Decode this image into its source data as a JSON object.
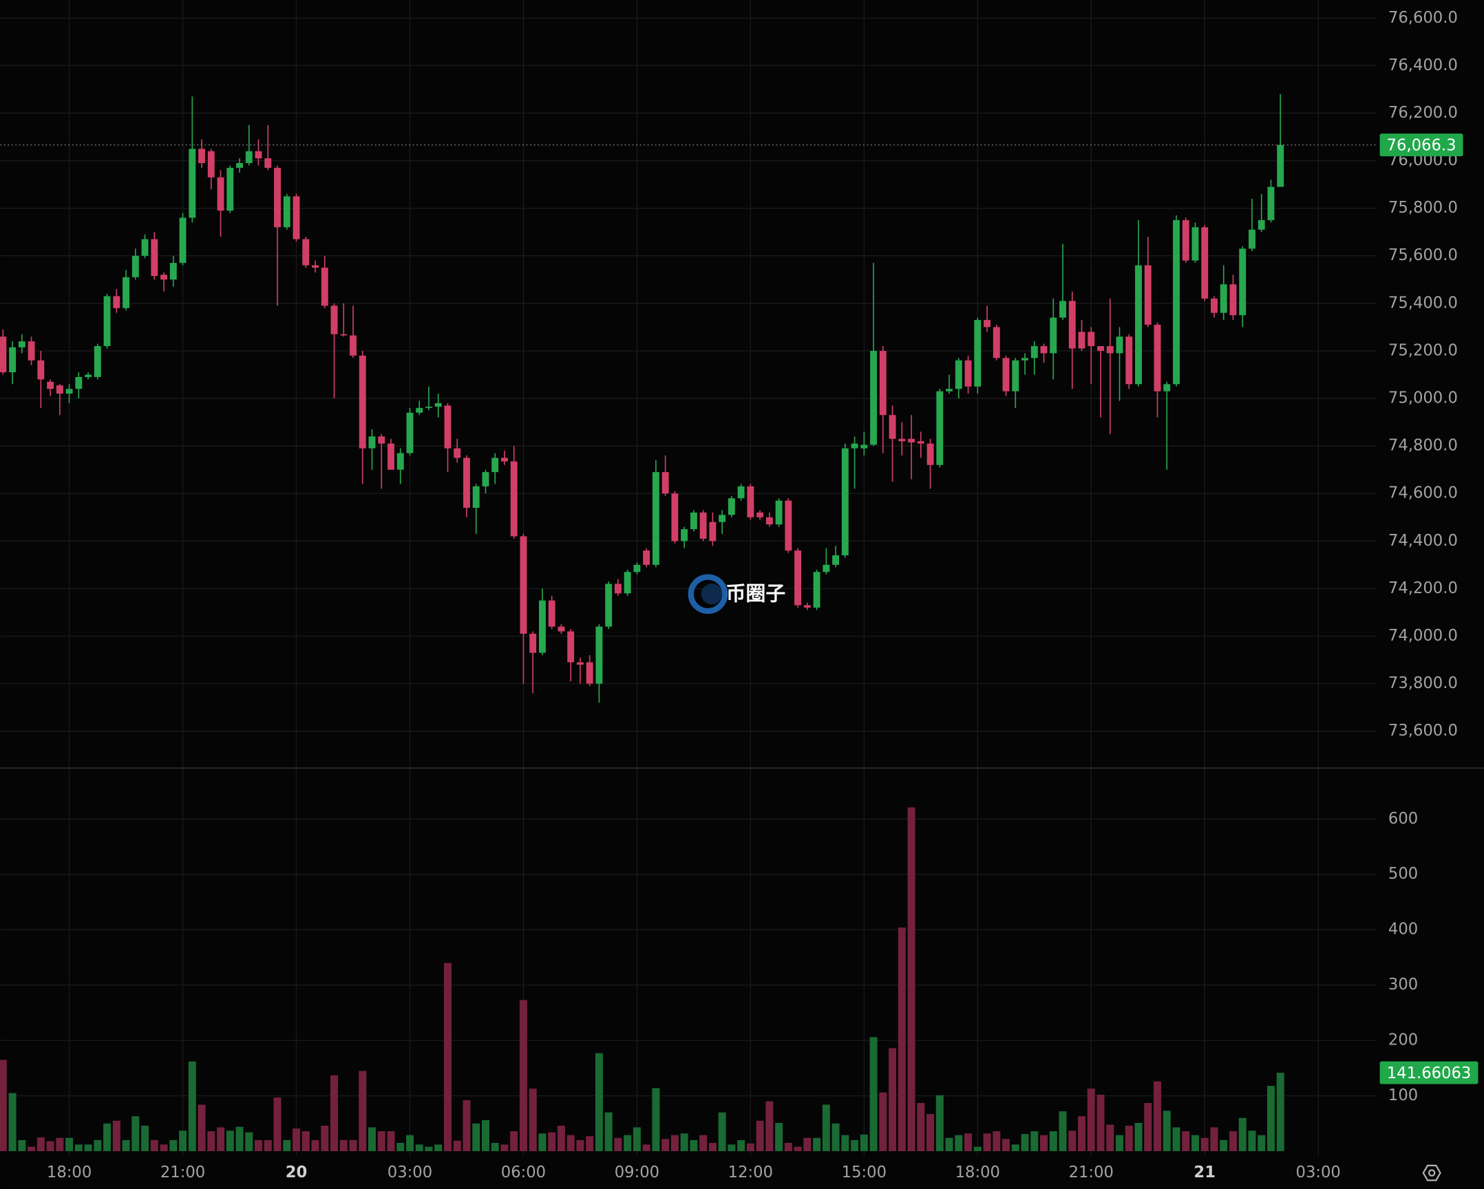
{
  "chart_data": {
    "type": "candlestick",
    "open": [
      75260,
      75110,
      75215,
      75240,
      75160,
      75070,
      75055,
      75020,
      75040,
      75090,
      75090,
      75220,
      75430,
      75380,
      75510,
      75600,
      75670,
      75520,
      75500,
      75570,
      75760,
      76050,
      76040,
      75930,
      75790,
      75970,
      75990,
      76040,
      76010,
      75970,
      75720,
      75850,
      75670,
      75560,
      75550,
      75390,
      75270,
      75265,
      75180,
      74790,
      74840,
      74810,
      74700,
      74770,
      74940,
      74960,
      74965,
      74970,
      74790,
      74750,
      74540,
      74630,
      74690,
      74750,
      74735,
      74420,
      74010,
      73930,
      74150,
      74040,
      74020,
      73890,
      73890,
      73800,
      74040,
      74220,
      74180,
      74270,
      74360,
      74300,
      74690,
      74600,
      74400,
      74450,
      74520,
      74480,
      74480,
      74510,
      74580,
      74630,
      74520,
      74500,
      74470,
      74570,
      74360,
      74130,
      74120,
      74270,
      74300,
      74340,
      74790,
      74790,
      74805,
      75200,
      74930,
      74830,
      74830,
      74820,
      74810,
      74720,
      75030,
      75040,
      75160,
      75050,
      75330,
      75300,
      75170,
      75030,
      75160,
      75170,
      75220,
      75190,
      75340,
      75410,
      75280,
      75280,
      75220,
      75220,
      75190,
      75260,
      75060,
      75560,
      75310,
      75030,
      75060,
      75750,
      75580,
      75720,
      75420,
      75360,
      75480,
      75350,
      75630,
      75710,
      75750,
      75890
    ],
    "high": [
      75290,
      75240,
      75270,
      75260,
      75200,
      75080,
      75060,
      75060,
      75110,
      75110,
      75230,
      75440,
      75460,
      75540,
      75630,
      75690,
      75700,
      75530,
      75600,
      75780,
      76270,
      76090,
      76050,
      75960,
      75980,
      76010,
      76150,
      76090,
      76150,
      75980,
      75860,
      75860,
      75680,
      75580,
      75600,
      75400,
      75400,
      75390,
      75200,
      74870,
      74850,
      74830,
      74790,
      74960,
      74990,
      75050,
      75020,
      74980,
      74830,
      74760,
      74640,
      74700,
      74770,
      74780,
      74800,
      74430,
      74020,
      74200,
      74170,
      74050,
      74030,
      73910,
      73920,
      74050,
      74230,
      74240,
      74280,
      74310,
      74370,
      74740,
      74760,
      74610,
      74460,
      74530,
      74530,
      74520,
      74530,
      74590,
      74640,
      74640,
      74530,
      74520,
      74580,
      74580,
      74370,
      74140,
      74280,
      74370,
      74380,
      74810,
      74840,
      74860,
      75570,
      75220,
      74970,
      74900,
      74930,
      74860,
      74830,
      75040,
      75100,
      75170,
      75180,
      75340,
      75390,
      75310,
      75180,
      75170,
      75190,
      75240,
      75230,
      75420,
      75650,
      75450,
      75330,
      75300,
      75210,
      75420,
      75300,
      75270,
      75750,
      75680,
      75320,
      75070,
      75770,
      75760,
      75740,
      75730,
      75430,
      75560,
      75520,
      75640,
      75840,
      75860,
      75920,
      76280
    ],
    "low": [
      75100,
      75060,
      75190,
      75140,
      74960,
      75010,
      74930,
      74980,
      75000,
      75080,
      75080,
      75210,
      75360,
      75370,
      75500,
      75590,
      75500,
      75450,
      75470,
      75560,
      75740,
      75970,
      75880,
      75680,
      75780,
      75950,
      75980,
      75980,
      75960,
      75390,
      75710,
      75660,
      75550,
      75530,
      75380,
      75000,
      75260,
      75170,
      74640,
      74700,
      74620,
      74700,
      74640,
      74760,
      74930,
      74950,
      74920,
      74690,
      74730,
      74500,
      74430,
      74600,
      74640,
      74720,
      74410,
      73800,
      73760,
      73920,
      74030,
      74010,
      73810,
      73800,
      73790,
      73720,
      74030,
      74170,
      74170,
      74260,
      74290,
      74290,
      74590,
      74390,
      74370,
      74440,
      74400,
      74380,
      74430,
      74500,
      74570,
      74490,
      74490,
      74460,
      74460,
      74350,
      74120,
      74110,
      74110,
      74260,
      74290,
      74330,
      74620,
      74760,
      74800,
      74770,
      74650,
      74760,
      74660,
      74750,
      74620,
      74710,
      75020,
      75000,
      75020,
      75020,
      75280,
      75160,
      75010,
      74960,
      75100,
      75100,
      75150,
      75080,
      75330,
      75040,
      75200,
      75060,
      74920,
      74850,
      74990,
      75040,
      75050,
      75300,
      74920,
      74700,
      75050,
      75570,
      75570,
      75410,
      75340,
      75330,
      75330,
      75300,
      75620,
      75700,
      75740,
      75890
    ],
    "close": [
      75110,
      75215,
      75240,
      75160,
      75080,
      75040,
      75020,
      75040,
      75090,
      75100,
      75220,
      75430,
      75380,
      75510,
      75600,
      75670,
      75515,
      75500,
      75570,
      75760,
      76050,
      75990,
      75930,
      75790,
      75970,
      75990,
      76040,
      76010,
      75970,
      75720,
      75850,
      75670,
      75560,
      75550,
      75390,
      75270,
      75265,
      75180,
      74790,
      74840,
      74810,
      74700,
      74770,
      74940,
      74960,
      74965,
      74980,
      74790,
      74750,
      74540,
      74630,
      74690,
      74750,
      74735,
      74420,
      74010,
      73930,
      74150,
      74040,
      74020,
      73890,
      73880,
      73800,
      74040,
      74220,
      74180,
      74270,
      74300,
      74300,
      74690,
      74600,
      74400,
      74450,
      74520,
      74410,
      74400,
      74510,
      74580,
      74630,
      74500,
      74500,
      74470,
      74570,
      74360,
      74130,
      74120,
      74270,
      74300,
      74340,
      74790,
      74810,
      74805,
      75200,
      74930,
      74830,
      74820,
      74815,
      74810,
      74720,
      75030,
      75040,
      75160,
      75050,
      75330,
      75300,
      75170,
      75030,
      75160,
      75170,
      75220,
      75190,
      75340,
      75410,
      75210,
      75210,
      75220,
      75200,
      75190,
      75260,
      75060,
      75560,
      75310,
      75030,
      75060,
      75750,
      75580,
      75720,
      75420,
      75360,
      75480,
      75350,
      75630,
      75710,
      75750,
      75890,
      76066.3
    ],
    "volume": [
      165,
      105,
      20,
      8,
      25,
      18,
      24,
      24,
      12,
      12,
      20,
      50,
      55,
      20,
      63,
      46,
      20,
      12,
      20,
      37,
      162,
      84,
      36,
      43,
      37,
      44,
      34,
      20,
      20,
      97,
      20,
      41,
      36,
      20,
      46,
      137,
      20,
      20,
      145,
      43,
      36,
      36,
      15,
      29,
      12,
      8,
      12,
      340,
      19,
      92,
      50,
      56,
      15,
      12,
      36,
      273,
      113,
      32,
      34,
      46,
      29,
      20,
      27,
      177,
      70,
      24,
      29,
      43,
      12,
      114,
      22,
      29,
      32,
      20,
      29,
      15,
      70,
      12,
      20,
      14,
      55,
      90,
      51,
      15,
      8,
      24,
      24,
      84,
      50,
      29,
      20,
      30,
      206,
      106,
      186,
      404,
      621,
      87,
      67,
      101,
      24,
      29,
      32,
      8,
      32,
      36,
      22,
      12,
      31,
      36,
      29,
      36,
      72,
      37,
      63,
      113,
      102,
      48,
      29,
      46,
      51,
      87,
      126,
      73,
      43,
      36,
      29,
      24,
      43,
      20,
      36,
      60,
      37,
      29,
      118,
      141.66063
    ],
    "last_price_label": "76,066.3",
    "watermark": "币圈子",
    "ylim": [
      73445,
      76676
    ],
    "yticks": [
      {
        "value": 73600,
        "label": "73,600.0"
      },
      {
        "value": 73800,
        "label": "73,800.0"
      },
      {
        "value": 74000,
        "label": "74,000.0"
      },
      {
        "value": 74200,
        "label": "74,200.0"
      },
      {
        "value": 74400,
        "label": "74,400.0"
      },
      {
        "value": 74600,
        "label": "74,600.0"
      },
      {
        "value": 74800,
        "label": "74,800.0"
      },
      {
        "value": 75000,
        "label": "75,000.0"
      },
      {
        "value": 75200,
        "label": "75,200.0"
      },
      {
        "value": 75400,
        "label": "75,400.0"
      },
      {
        "value": 75600,
        "label": "75,600.0"
      },
      {
        "value": 75800,
        "label": "75,800.0"
      },
      {
        "value": 76000,
        "label": "76,000.0"
      },
      {
        "value": 76200,
        "label": "76,200.0"
      },
      {
        "value": 76400,
        "label": "76,400.0"
      },
      {
        "value": 76600,
        "label": "76,600.0"
      }
    ],
    "volume_ylim": [
      0,
      692
    ],
    "volume_yticks": [
      100,
      200,
      300,
      400,
      500,
      600
    ],
    "xlim": [
      -0.3,
      145.2
    ],
    "xticks": [
      {
        "value": 7,
        "label": "18:00"
      },
      {
        "value": 19,
        "label": "21:00"
      },
      {
        "value": 31,
        "label": "20"
      },
      {
        "value": 43,
        "label": "03:00"
      },
      {
        "value": 55,
        "label": "06:00"
      },
      {
        "value": 67,
        "label": "09:00"
      },
      {
        "value": 79,
        "label": "12:00"
      },
      {
        "value": 91,
        "label": "15:00"
      },
      {
        "value": 103,
        "label": "18:00"
      },
      {
        "value": 115,
        "label": "21:00"
      },
      {
        "value": 127,
        "label": "21"
      },
      {
        "value": 139,
        "label": "03:00"
      }
    ],
    "grid": true,
    "colors": {
      "up": "#27a84f",
      "down": "#d23f66",
      "up_volume": "#1a6a33",
      "down_volume": "#74213d",
      "label_bg": "#20a84a"
    }
  }
}
